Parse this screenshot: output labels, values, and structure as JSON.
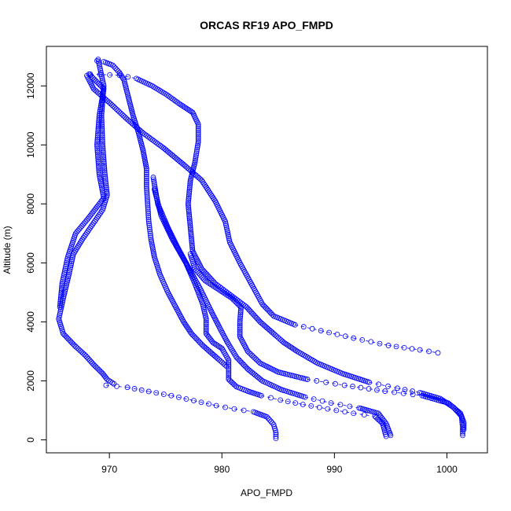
{
  "chart_data": {
    "type": "scatter",
    "title": "ORCAS RF19 APO_FMPD",
    "xlabel": "APO_FMPD",
    "ylabel": "Altitude (m)",
    "xlim": [
      964.4,
      1003.6
    ],
    "ylim": [
      -440,
      13340
    ],
    "xticks": [
      970,
      980,
      990,
      1000
    ],
    "yticks": [
      0,
      2000,
      4000,
      6000,
      8000,
      10000,
      12000
    ],
    "grid": false,
    "legend": "none",
    "marker": "open-circle",
    "marker_color": "#0000ff",
    "line_style": "dashed",
    "series": [
      {
        "points": [
          [
            968.9,
            12850
          ],
          [
            969.5,
            12820
          ],
          [
            970.3,
            12700
          ],
          [
            970.9,
            12450
          ],
          [
            971.3,
            12200
          ],
          [
            971.7,
            11600
          ],
          [
            972.1,
            11000
          ],
          [
            972.6,
            10400
          ],
          [
            973.0,
            9800
          ],
          [
            973.3,
            9200
          ],
          [
            973.3,
            8600
          ],
          [
            973.4,
            8000
          ],
          [
            973.5,
            7400
          ],
          [
            973.7,
            6800
          ],
          [
            974.0,
            6200
          ],
          [
            974.5,
            5600
          ],
          [
            975.2,
            5000
          ],
          [
            975.9,
            4500
          ],
          [
            976.6,
            4000
          ],
          [
            977.3,
            3600
          ],
          [
            978.3,
            3200
          ],
          [
            979.5,
            2800
          ],
          [
            980.4,
            2500
          ]
        ]
      },
      {
        "points": [
          [
            969.0,
            12900
          ],
          [
            969.5,
            12000
          ],
          [
            969.3,
            11000
          ],
          [
            969.4,
            10000
          ],
          [
            969.6,
            9000
          ],
          [
            969.8,
            8300
          ],
          [
            969.4,
            7800
          ],
          [
            968.5,
            7300
          ],
          [
            967.6,
            6800
          ],
          [
            966.8,
            6300
          ],
          [
            966.4,
            5600
          ],
          [
            965.9,
            4800
          ],
          [
            965.5,
            4100
          ],
          [
            965.9,
            3600
          ],
          [
            966.9,
            3200
          ],
          [
            967.9,
            2850
          ],
          [
            968.6,
            2550
          ],
          [
            969.4,
            2250
          ],
          [
            969.8,
            2050
          ],
          [
            970.4,
            1900
          ]
        ]
      },
      {
        "points": [
          [
            968.3,
            12400
          ],
          [
            970.9,
            12360
          ],
          [
            972.4,
            12250
          ],
          [
            973.8,
            12000
          ],
          [
            975.1,
            11700
          ],
          [
            976.2,
            11400
          ],
          [
            977.4,
            11100
          ],
          [
            977.9,
            10700
          ],
          [
            977.9,
            10100
          ],
          [
            977.6,
            9400
          ],
          [
            977.2,
            8800
          ],
          [
            977.0,
            8000
          ],
          [
            977.2,
            7200
          ],
          [
            977.4,
            6400
          ],
          [
            978.2,
            5800
          ],
          [
            979.4,
            5300
          ],
          [
            980.8,
            4900
          ],
          [
            982.2,
            4500
          ],
          [
            983.4,
            4000
          ],
          [
            984.6,
            3600
          ],
          [
            985.5,
            3300
          ],
          [
            986.7,
            3000
          ],
          [
            988.5,
            2600
          ],
          [
            990.7,
            2250
          ],
          [
            993.1,
            1950
          ],
          [
            995.6,
            1750
          ],
          [
            997.6,
            1600
          ],
          [
            999.4,
            1400
          ],
          [
            1000.6,
            1100
          ],
          [
            1001.3,
            800
          ],
          [
            1001.4,
            400
          ],
          [
            1001.4,
            150
          ]
        ]
      },
      {
        "points": [
          [
            968.0,
            12350
          ],
          [
            968.6,
            11900
          ],
          [
            970.1,
            11400
          ],
          [
            971.5,
            10900
          ],
          [
            973.0,
            10400
          ],
          [
            974.8,
            9900
          ],
          [
            976.7,
            9300
          ],
          [
            978.2,
            8800
          ],
          [
            979.4,
            8100
          ],
          [
            980.3,
            7400
          ],
          [
            980.7,
            6700
          ],
          [
            981.6,
            6000
          ],
          [
            982.6,
            5300
          ],
          [
            983.6,
            4600
          ],
          [
            984.6,
            4200
          ],
          [
            986.5,
            3900
          ],
          [
            988.8,
            3700
          ],
          [
            991.7,
            3450
          ],
          [
            994.8,
            3200
          ],
          [
            997.6,
            3050
          ],
          [
            999.2,
            2950
          ]
        ]
      },
      {
        "points": [
          [
            973.9,
            8900
          ],
          [
            974.3,
            8000
          ],
          [
            975.2,
            7200
          ],
          [
            976.1,
            6500
          ],
          [
            977.1,
            5800
          ],
          [
            978.1,
            5100
          ],
          [
            979.0,
            4400
          ],
          [
            979.8,
            3800
          ],
          [
            980.5,
            3300
          ],
          [
            981.3,
            2800
          ],
          [
            982.3,
            2400
          ],
          [
            983.6,
            2000
          ],
          [
            985.3,
            1700
          ],
          [
            987.4,
            1450
          ],
          [
            989.7,
            1250
          ],
          [
            992.2,
            1080
          ],
          [
            993.9,
            900
          ],
          [
            994.6,
            550
          ],
          [
            994.9,
            250
          ],
          [
            995.0,
            150
          ]
        ]
      },
      {
        "points": [
          [
            977.2,
            6300
          ],
          [
            977.6,
            5800
          ],
          [
            978.5,
            5400
          ],
          [
            979.7,
            5100
          ],
          [
            980.9,
            4800
          ],
          [
            981.7,
            4500
          ],
          [
            981.6,
            4000
          ],
          [
            981.6,
            3500
          ],
          [
            982.3,
            3000
          ],
          [
            983.4,
            2600
          ],
          [
            985.0,
            2300
          ],
          [
            987.6,
            2050
          ],
          [
            990.9,
            1850
          ],
          [
            994.5,
            1650
          ],
          [
            997.8,
            1500
          ],
          [
            1000.1,
            1250
          ],
          [
            1001.2,
            900
          ],
          [
            1001.5,
            600
          ],
          [
            1001.5,
            350
          ]
        ]
      },
      {
        "points": [
          [
            968.2,
            12400
          ],
          [
            969.5,
            11900
          ],
          [
            969.1,
            11000
          ],
          [
            968.9,
            10000
          ],
          [
            969.1,
            9000
          ],
          [
            969.5,
            8200
          ],
          [
            968.1,
            7500
          ],
          [
            967.0,
            7000
          ],
          [
            966.3,
            6200
          ],
          [
            965.8,
            5300
          ],
          [
            965.6,
            4500
          ]
        ]
      },
      {
        "points": [
          [
            974.0,
            8500
          ],
          [
            974.6,
            7600
          ],
          [
            975.6,
            6800
          ],
          [
            976.8,
            6000
          ],
          [
            977.6,
            5300
          ],
          [
            978.3,
            4600
          ],
          [
            978.6,
            4100
          ],
          [
            978.6,
            3600
          ],
          [
            979.2,
            3300
          ],
          [
            980.0,
            3100
          ],
          [
            980.6,
            2700
          ],
          [
            980.6,
            2300
          ],
          [
            980.6,
            2050
          ],
          [
            981.3,
            1800
          ],
          [
            982.3,
            1650
          ],
          [
            983.5,
            1500
          ],
          [
            985.2,
            1350
          ],
          [
            987.2,
            1200
          ],
          [
            989.4,
            1050
          ],
          [
            991.7,
            900
          ],
          [
            993.6,
            800
          ],
          [
            994.3,
            550
          ],
          [
            994.5,
            250
          ],
          [
            994.6,
            120
          ]
        ]
      },
      {
        "points": [
          [
            969.7,
            1850
          ],
          [
            971.6,
            1780
          ],
          [
            973.5,
            1640
          ],
          [
            975.5,
            1500
          ],
          [
            977.5,
            1330
          ],
          [
            979.5,
            1160
          ],
          [
            981.1,
            1050
          ],
          [
            982.8,
            950
          ],
          [
            984.0,
            780
          ],
          [
            984.6,
            520
          ],
          [
            984.8,
            250
          ],
          [
            984.8,
            50
          ]
        ]
      }
    ]
  }
}
